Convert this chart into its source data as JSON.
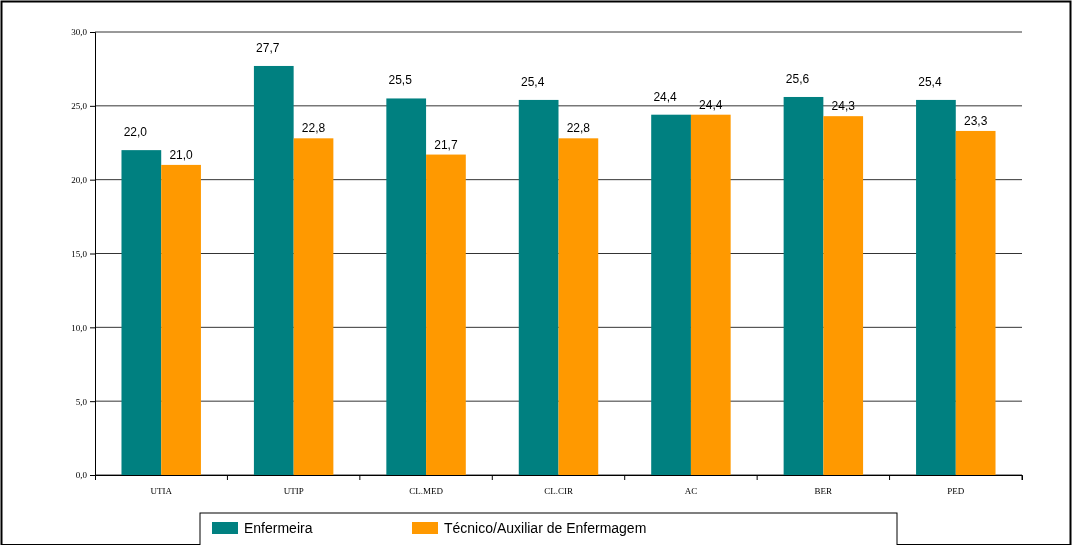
{
  "chart_data": {
    "type": "bar",
    "categories": [
      "UTIA",
      "UTIP",
      "CL.MED",
      "CL.CIR",
      "AC",
      "BER",
      "PED"
    ],
    "series": [
      {
        "name": "Enfermeira",
        "color": "#008080",
        "values": [
          22.0,
          27.7,
          25.5,
          25.4,
          24.4,
          25.6,
          25.4
        ],
        "value_labels": [
          "22,0",
          "27,7",
          "25,5",
          "25,4",
          "24,4",
          "25,6",
          "25,4"
        ]
      },
      {
        "name": "Técnico/Auxiliar de Enfermagem",
        "color": "#ff9900",
        "values": [
          21.0,
          22.8,
          21.7,
          22.8,
          24.4,
          24.3,
          23.3
        ],
        "value_labels": [
          "21,0",
          "22,8",
          "21,7",
          "22,8",
          "24,4",
          "24,3",
          "23,3"
        ]
      }
    ],
    "ylim": [
      0,
      30
    ],
    "yticks": [
      {
        "value": 0,
        "label": "0,0"
      },
      {
        "value": 5,
        "label": "5,0"
      },
      {
        "value": 10,
        "label": "10,0"
      },
      {
        "value": 15,
        "label": "15,0"
      },
      {
        "value": 20,
        "label": "20,0"
      },
      {
        "value": 25,
        "label": "25,0"
      },
      {
        "value": 30,
        "label": "30,0"
      }
    ],
    "grid": "y",
    "legend": "bottom"
  }
}
